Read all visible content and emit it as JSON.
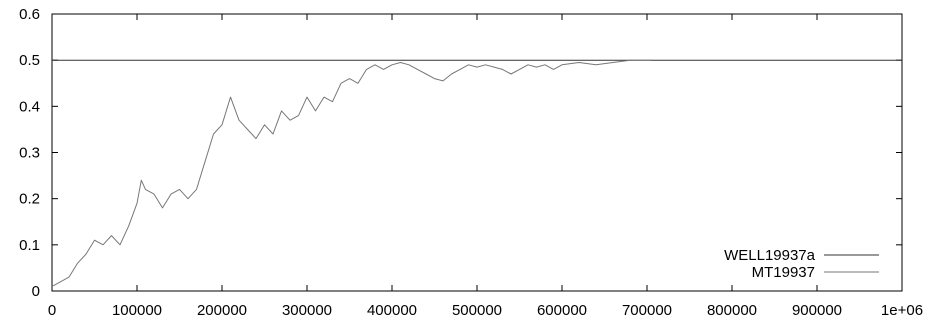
{
  "chart_data": {
    "type": "line",
    "title": "",
    "xlabel": "",
    "ylabel": "",
    "xlim": [
      0,
      1000000
    ],
    "ylim": [
      0,
      0.6
    ],
    "grid": false,
    "legend_position": "bottom-right",
    "x_ticks": [
      0,
      100000,
      200000,
      300000,
      400000,
      500000,
      600000,
      700000,
      800000,
      900000,
      1000000
    ],
    "x_tick_labels": [
      "0",
      "100000",
      "200000",
      "300000",
      "400000",
      "500000",
      "600000",
      "700000",
      "800000",
      "900000",
      "1e+06"
    ],
    "y_ticks": [
      0,
      0.1,
      0.2,
      0.3,
      0.4,
      0.5,
      0.6
    ],
    "y_tick_labels": [
      "0",
      "0.1",
      "0.2",
      "0.3",
      "0.4",
      "0.5",
      "0.6"
    ],
    "series": [
      {
        "name": "WELL19937a",
        "color": "#333333",
        "x": [
          0,
          100000,
          200000,
          300000,
          400000,
          500000,
          600000,
          700000,
          800000,
          900000,
          1000000
        ],
        "y": [
          0.5,
          0.5,
          0.5,
          0.5,
          0.5,
          0.5,
          0.5,
          0.5,
          0.5,
          0.5,
          0.5
        ]
      },
      {
        "name": "MT19937",
        "color": "#777777",
        "x": [
          0,
          10000,
          20000,
          30000,
          40000,
          50000,
          60000,
          70000,
          80000,
          90000,
          100000,
          105000,
          110000,
          120000,
          130000,
          140000,
          150000,
          160000,
          170000,
          180000,
          190000,
          200000,
          210000,
          220000,
          230000,
          240000,
          250000,
          260000,
          270000,
          280000,
          290000,
          300000,
          310000,
          320000,
          330000,
          340000,
          350000,
          360000,
          370000,
          380000,
          390000,
          400000,
          410000,
          420000,
          430000,
          440000,
          450000,
          460000,
          470000,
          480000,
          490000,
          500000,
          510000,
          520000,
          530000,
          540000,
          550000,
          560000,
          570000,
          580000,
          590000,
          600000,
          620000,
          640000,
          660000,
          680000,
          700000,
          705000
        ],
        "y": [
          0.01,
          0.02,
          0.03,
          0.06,
          0.08,
          0.11,
          0.1,
          0.12,
          0.1,
          0.14,
          0.19,
          0.24,
          0.22,
          0.21,
          0.18,
          0.21,
          0.22,
          0.2,
          0.22,
          0.28,
          0.34,
          0.36,
          0.42,
          0.37,
          0.35,
          0.33,
          0.36,
          0.34,
          0.39,
          0.37,
          0.38,
          0.42,
          0.39,
          0.42,
          0.41,
          0.45,
          0.46,
          0.45,
          0.48,
          0.49,
          0.48,
          0.49,
          0.495,
          0.49,
          0.48,
          0.47,
          0.46,
          0.455,
          0.47,
          0.48,
          0.49,
          0.485,
          0.49,
          0.485,
          0.48,
          0.47,
          0.48,
          0.49,
          0.485,
          0.49,
          0.48,
          0.49,
          0.495,
          0.49,
          0.495,
          0.5,
          0.5,
          0.5
        ]
      }
    ]
  }
}
